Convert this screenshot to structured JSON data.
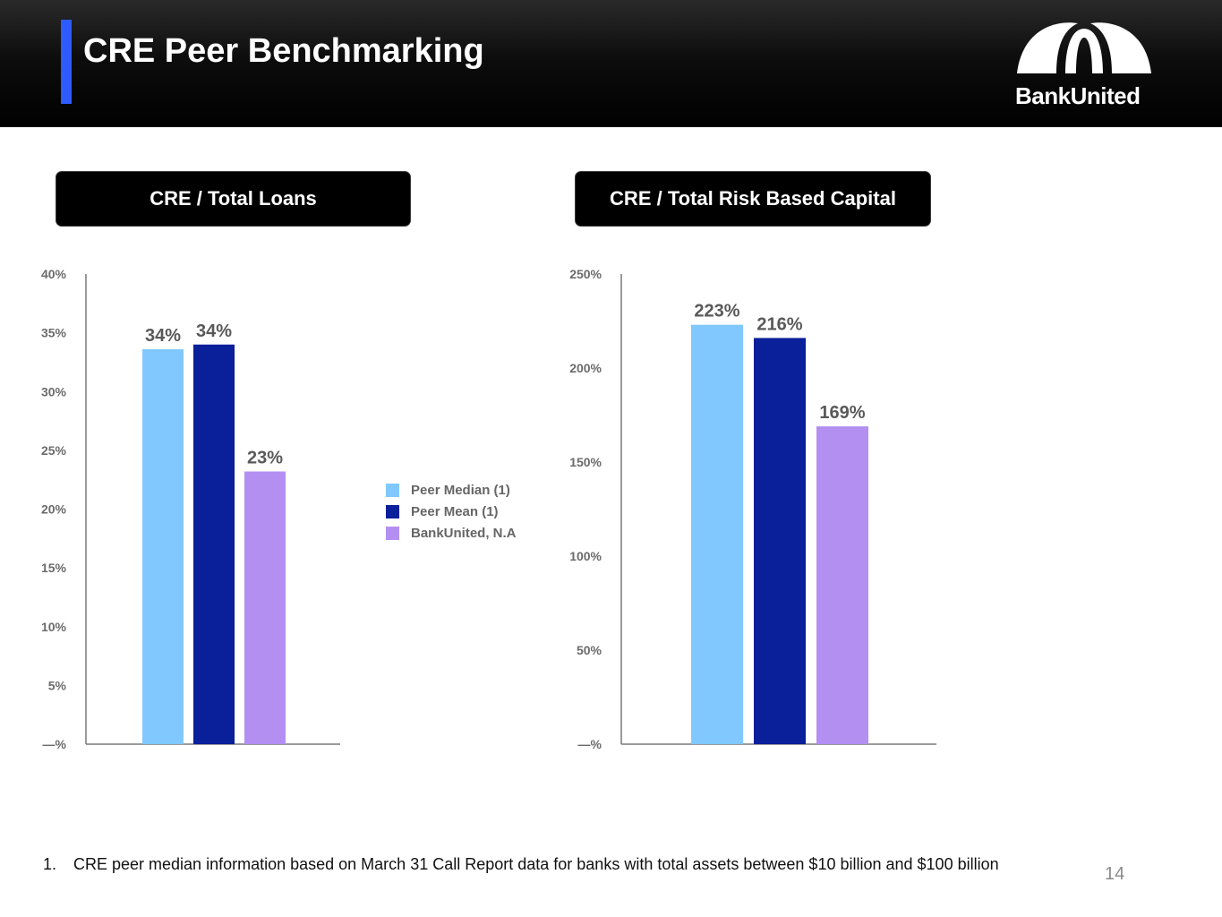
{
  "page": {
    "title": "CRE Peer Benchmarking",
    "logo_text": "BankUnited",
    "page_number": "14",
    "footnote_number": "1.",
    "footnote_text": "CRE peer median information based on March 31 Call Report data for banks with total assets between $10 billion and $100 billion"
  },
  "colors": {
    "accent": "#2e5bff",
    "peer_median": "#80c8ff",
    "peer_mean": "#0a1f9a",
    "bankunited": "#b48ff2",
    "axis": "#7a7a7a"
  },
  "legend": [
    {
      "label": "Peer Median (1)",
      "color": "#80c8ff"
    },
    {
      "label": "Peer Mean (1)",
      "color": "#0a1f9a"
    },
    {
      "label": "BankUnited, N.A",
      "color": "#b48ff2"
    }
  ],
  "chart_data": [
    {
      "type": "bar",
      "title": "CRE / Total Loans",
      "categories": [
        "Peer Median (1)",
        "Peer Mean (1)",
        "BankUnited, N.A"
      ],
      "values": [
        33.6,
        34.0,
        23.2
      ],
      "data_labels": [
        "34%",
        "34%",
        "23%"
      ],
      "ylim": [
        0,
        40
      ],
      "yticks": [
        0,
        5,
        10,
        15,
        20,
        25,
        30,
        35,
        40
      ],
      "ytick_labels": [
        "—%",
        "5%",
        "10%",
        "15%",
        "20%",
        "25%",
        "30%",
        "35%",
        "40%"
      ],
      "xlabel": "",
      "ylabel": "",
      "grid": false,
      "legend_position": "right"
    },
    {
      "type": "bar",
      "title": "CRE / Total Risk Based Capital",
      "categories": [
        "Peer Median (1)",
        "Peer Mean (1)",
        "BankUnited, N.A"
      ],
      "values": [
        223,
        216,
        169
      ],
      "data_labels": [
        "223%",
        "216%",
        "169%"
      ],
      "ylim": [
        0,
        250
      ],
      "yticks": [
        0,
        50,
        100,
        150,
        200,
        250
      ],
      "ytick_labels": [
        "—%",
        "50%",
        "100%",
        "150%",
        "200%",
        "250%"
      ],
      "xlabel": "",
      "ylabel": "",
      "grid": false,
      "legend_position": "none"
    }
  ]
}
